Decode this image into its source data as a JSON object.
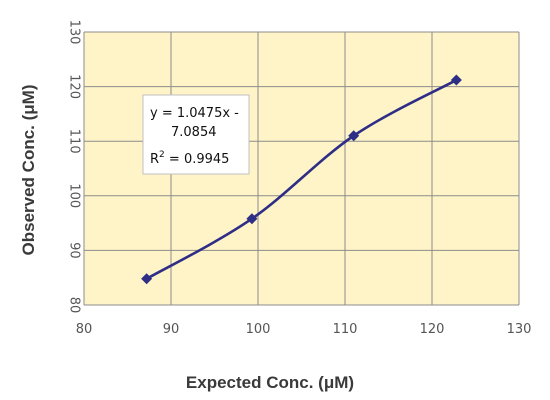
{
  "chart_data": {
    "type": "scatter",
    "xlabel": "Expected Conc. (μM)",
    "ylabel": "Observed Conc. (μM)",
    "xlim": [
      80,
      130
    ],
    "ylim": [
      80,
      130
    ],
    "xticks": [
      "80",
      "90",
      "100",
      "110",
      "120",
      "130"
    ],
    "yticks": [
      "80",
      "90",
      "100",
      "110",
      "120",
      "130"
    ],
    "grid": true,
    "smoothed_line": true,
    "points": [
      {
        "x": 87.2,
        "y": 84.8
      },
      {
        "x": 99.3,
        "y": 95.8
      },
      {
        "x": 111.0,
        "y": 111.0
      },
      {
        "x": 122.8,
        "y": 121.2
      }
    ],
    "annotation": {
      "equation_line1": "y = 1.0475x -",
      "equation_line2": "7.0854",
      "r2_prefix": "R",
      "r2_sup": "2",
      "r2_suffix": " = 0.9945"
    },
    "colors": {
      "plot_background": "#fff4c8",
      "grid": "#8c8c8c",
      "series": "#2e2e86"
    }
  }
}
